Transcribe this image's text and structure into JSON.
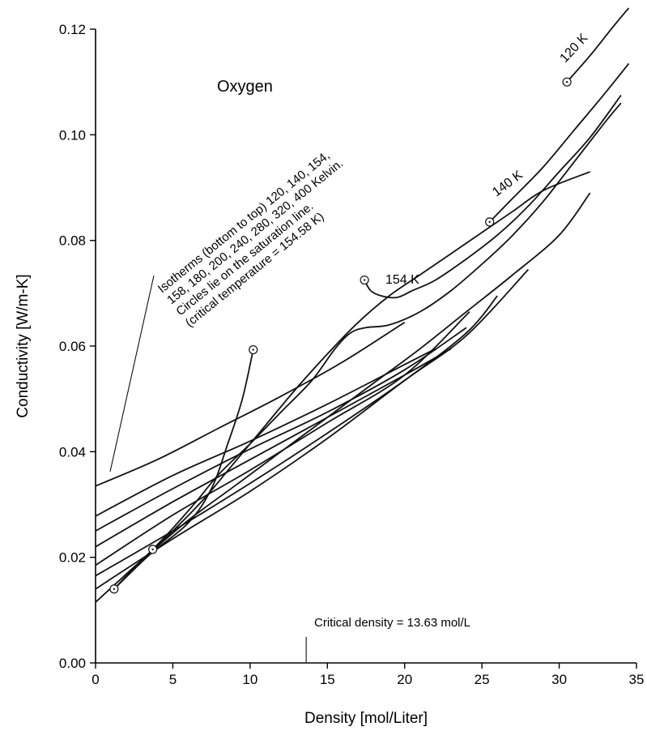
{
  "chart_data": {
    "type": "line",
    "title": "Oxygen",
    "xlabel": "Density [mol/Liter]",
    "ylabel": "Conductivity [W/m-K]",
    "xlim": [
      0,
      35
    ],
    "ylim": [
      0,
      0.12
    ],
    "xticks": [
      "0",
      "5",
      "10",
      "15",
      "20",
      "25",
      "30",
      "35"
    ],
    "yticks": [
      "0.00",
      "0.02",
      "0.04",
      "0.06",
      "0.08",
      "0.10",
      "0.12"
    ],
    "grid": false,
    "series": [
      {
        "name": "120 K",
        "points": [
          [
            30.5,
            0.11
          ],
          [
            32,
            0.115
          ],
          [
            33.5,
            0.1205
          ],
          [
            34.5,
            0.124
          ]
        ]
      },
      {
        "name": "140 K",
        "points": [
          [
            25.5,
            0.0835
          ],
          [
            27,
            0.088
          ],
          [
            29,
            0.094
          ],
          [
            31,
            0.101
          ],
          [
            33,
            0.108
          ],
          [
            34.5,
            0.1135
          ]
        ]
      },
      {
        "name": "154 K",
        "points": [
          [
            17.4,
            0.0725
          ],
          [
            17.8,
            0.0705
          ],
          [
            18.5,
            0.0695
          ],
          [
            19.5,
            0.0692
          ],
          [
            20.5,
            0.0705
          ],
          [
            22,
            0.0725
          ],
          [
            24,
            0.0765
          ],
          [
            26,
            0.081
          ],
          [
            28,
            0.0865
          ],
          [
            30,
            0.093
          ],
          [
            32,
            0.0995
          ],
          [
            34,
            0.1075
          ]
        ]
      },
      {
        "points": [
          [
            3.7,
            0.0215
          ],
          [
            5,
            0.0255
          ],
          [
            6.5,
            0.0305
          ],
          [
            8,
            0.0358
          ],
          [
            10,
            0.0415
          ],
          [
            12,
            0.0475
          ],
          [
            14,
            0.0535
          ],
          [
            15.5,
            0.0595
          ],
          [
            16.5,
            0.0625
          ],
          [
            17.5,
            0.0635
          ],
          [
            19,
            0.064
          ],
          [
            21,
            0.0665
          ],
          [
            23,
            0.0705
          ],
          [
            25,
            0.0755
          ],
          [
            27,
            0.081
          ],
          [
            29,
            0.0875
          ],
          [
            31,
            0.095
          ],
          [
            33,
            0.1025
          ],
          [
            34,
            0.106
          ]
        ]
      },
      {
        "points": [
          [
            1.2,
            0.014
          ],
          [
            3,
            0.0195
          ],
          [
            5,
            0.025
          ],
          [
            7,
            0.031
          ],
          [
            9,
            0.038
          ],
          [
            11,
            0.045
          ],
          [
            13,
            0.052
          ],
          [
            15,
            0.0585
          ],
          [
            17,
            0.0645
          ],
          [
            19,
            0.0695
          ],
          [
            21,
            0.0735
          ],
          [
            23,
            0.0775
          ],
          [
            25,
            0.0815
          ],
          [
            27,
            0.0855
          ],
          [
            29,
            0.0895
          ],
          [
            32,
            0.093
          ]
        ]
      },
      {
        "points": [
          [
            0,
            0.0115
          ],
          [
            3,
            0.0195
          ],
          [
            6,
            0.027
          ],
          [
            9,
            0.0335
          ],
          [
            12,
            0.04
          ],
          [
            15,
            0.0465
          ],
          [
            18,
            0.053
          ],
          [
            21,
            0.0595
          ],
          [
            24,
            0.0665
          ],
          [
            27,
            0.0735
          ],
          [
            30,
            0.081
          ],
          [
            32,
            0.089
          ]
        ]
      },
      {
        "points": [
          [
            0,
            0.014
          ],
          [
            5,
            0.0235
          ],
          [
            10,
            0.0325
          ],
          [
            15,
            0.0425
          ],
          [
            20,
            0.0535
          ],
          [
            24,
            0.062
          ],
          [
            28,
            0.0745
          ]
        ]
      },
      {
        "points": [
          [
            0,
            0.0165
          ],
          [
            5,
            0.025
          ],
          [
            10,
            0.034
          ],
          [
            15,
            0.0435
          ],
          [
            20,
            0.0535
          ],
          [
            24,
            0.0625
          ],
          [
            26,
            0.0695
          ]
        ]
      },
      {
        "points": [
          [
            0,
            0.0185
          ],
          [
            5,
            0.028
          ],
          [
            10,
            0.0365
          ],
          [
            15,
            0.0455
          ],
          [
            20,
            0.0545
          ],
          [
            24.2,
            0.0665
          ]
        ]
      },
      {
        "points": [
          [
            0,
            0.022
          ],
          [
            5,
            0.0305
          ],
          [
            10,
            0.0385
          ],
          [
            15,
            0.0465
          ],
          [
            20,
            0.0545
          ],
          [
            23,
            0.0595
          ]
        ]
      },
      {
        "points": [
          [
            0,
            0.025
          ],
          [
            5,
            0.033
          ],
          [
            10,
            0.0405
          ],
          [
            15,
            0.0475
          ],
          [
            20,
            0.0555
          ],
          [
            24,
            0.0635
          ]
        ]
      },
      {
        "points": [
          [
            0,
            0.0278
          ],
          [
            5,
            0.0355
          ],
          [
            10,
            0.042
          ],
          [
            15,
            0.049
          ],
          [
            20,
            0.0565
          ],
          [
            22,
            0.0595
          ]
        ]
      },
      {
        "points": [
          [
            0,
            0.0335
          ],
          [
            4,
            0.0385
          ],
          [
            8,
            0.0445
          ],
          [
            12,
            0.0505
          ],
          [
            16,
            0.057
          ],
          [
            20,
            0.0645
          ]
        ]
      },
      {
        "points": [
          [
            1.2,
            0.014
          ],
          [
            3.5,
            0.0205
          ],
          [
            6,
            0.0265
          ],
          [
            7.5,
            0.033
          ],
          [
            8.5,
            0.041
          ],
          [
            9.5,
            0.05
          ],
          [
            10.2,
            0.0593
          ]
        ]
      }
    ],
    "saturation_points": [
      [
        1.2,
        0.014
      ],
      [
        3.7,
        0.0215
      ],
      [
        10.2,
        0.0593
      ],
      [
        17.4,
        0.0725
      ],
      [
        25.5,
        0.0835
      ],
      [
        30.5,
        0.11
      ]
    ],
    "annotations": {
      "isotherm_note": [
        "Isotherms (bottom to top) 120, 140, 154,",
        "158, 180, 200, 240, 280, 320, 400 Kelvin.",
        "Circles lie on the saturation line.",
        "(critical temperature = 154.58 K)"
      ],
      "critical_density_label": "Critical density = 13.63 mol/L",
      "critical_density_value": 13.63,
      "label_120": "120 K",
      "label_140": "140 K",
      "label_154": "154 K"
    }
  }
}
